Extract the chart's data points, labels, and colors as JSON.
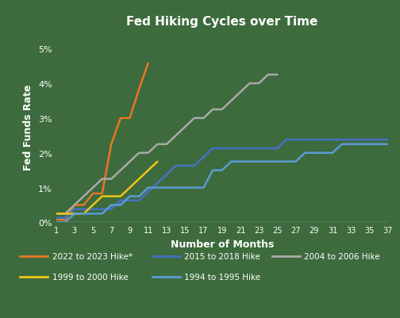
{
  "title": "Fed Hiking Cycles over Time",
  "xlabel": "Number of Months",
  "ylabel": "Fed Funds Rate",
  "background_color": "#3d6b3d",
  "text_color": "#ffffff",
  "xlim": [
    1,
    37
  ],
  "ylim": [
    0,
    0.055
  ],
  "xticks": [
    1,
    3,
    5,
    7,
    9,
    11,
    13,
    15,
    17,
    19,
    21,
    23,
    25,
    27,
    29,
    31,
    33,
    35,
    37
  ],
  "yticks": [
    0.0,
    0.01,
    0.02,
    0.03,
    0.04,
    0.05
  ],
  "series": [
    {
      "label": "2022 to 2023 Hike*",
      "color": "#e87722",
      "months": [
        1,
        2,
        3,
        4,
        5,
        6,
        7,
        8,
        9,
        10,
        11
      ],
      "rates": [
        0.0008,
        0.0008,
        0.005,
        0.005,
        0.0083,
        0.0083,
        0.0225,
        0.03,
        0.03,
        0.0383,
        0.0458
      ]
    },
    {
      "label": "2015 to 2018 Hike",
      "color": "#4472c4",
      "months": [
        1,
        2,
        3,
        4,
        5,
        6,
        7,
        8,
        9,
        10,
        11,
        12,
        13,
        14,
        15,
        16,
        17,
        18,
        19,
        20,
        21,
        22,
        23,
        24,
        25,
        26,
        27,
        28,
        29,
        30,
        31,
        32,
        33,
        34,
        35,
        36,
        37
      ],
      "rates": [
        0.0013,
        0.0013,
        0.0038,
        0.0038,
        0.0038,
        0.0038,
        0.0038,
        0.0063,
        0.0063,
        0.0063,
        0.0088,
        0.0113,
        0.0138,
        0.0163,
        0.0163,
        0.0163,
        0.0188,
        0.0213,
        0.0213,
        0.0213,
        0.0213,
        0.0213,
        0.0213,
        0.0213,
        0.0213,
        0.0238,
        0.0238,
        0.0238,
        0.0238,
        0.0238,
        0.0238,
        0.0238,
        0.0238,
        0.0238,
        0.0238,
        0.0238,
        0.0238
      ]
    },
    {
      "label": "2004 to 2006 Hike",
      "color": "#a9a9a9",
      "months": [
        1,
        2,
        3,
        4,
        5,
        6,
        7,
        8,
        9,
        10,
        11,
        12,
        13,
        14,
        15,
        16,
        17,
        18,
        19,
        20,
        21,
        22,
        23,
        24,
        25
      ],
      "rates": [
        0.0025,
        0.0025,
        0.005,
        0.0075,
        0.01,
        0.0125,
        0.0125,
        0.015,
        0.0175,
        0.02,
        0.02,
        0.0225,
        0.0225,
        0.025,
        0.0275,
        0.03,
        0.03,
        0.0325,
        0.0325,
        0.035,
        0.0375,
        0.04,
        0.04,
        0.0425,
        0.0425
      ]
    },
    {
      "label": "1999 to 2000 Hike",
      "color": "#f0c419",
      "months": [
        1,
        2,
        3,
        4,
        5,
        6,
        7,
        8,
        9,
        10,
        11,
        12
      ],
      "rates": [
        0.0025,
        0.0025,
        0.0025,
        0.0025,
        0.005,
        0.0075,
        0.0075,
        0.0075,
        0.01,
        0.0125,
        0.015,
        0.0175
      ]
    },
    {
      "label": "1994 to 1995 Hike",
      "color": "#5b9bd5",
      "months": [
        1,
        2,
        3,
        4,
        5,
        6,
        7,
        8,
        9,
        10,
        11,
        12,
        13,
        14,
        15,
        16,
        17,
        18,
        19,
        20,
        21,
        22,
        23,
        24,
        25,
        26,
        27,
        28,
        29,
        30,
        31,
        32,
        33,
        34,
        35,
        36,
        37
      ],
      "rates": [
        0.0,
        0.0,
        0.0025,
        0.0025,
        0.0025,
        0.0025,
        0.005,
        0.005,
        0.0075,
        0.0075,
        0.01,
        0.01,
        0.01,
        0.01,
        0.01,
        0.01,
        0.01,
        0.015,
        0.015,
        0.0175,
        0.0175,
        0.0175,
        0.0175,
        0.0175,
        0.0175,
        0.0175,
        0.0175,
        0.02,
        0.02,
        0.02,
        0.02,
        0.0225,
        0.0225,
        0.0225,
        0.0225,
        0.0225,
        0.0225
      ]
    }
  ],
  "legend_rows": [
    [
      "2022 to 2023 Hike*",
      "#e87722"
    ],
    [
      "2015 to 2018 Hike",
      "#4472c4"
    ],
    [
      "2004 to 2006 Hike",
      "#a9a9a9"
    ],
    [
      "1999 to 2000 Hike",
      "#f0c419"
    ],
    [
      "1994 to 1995 Hike",
      "#5b9bd5"
    ]
  ]
}
